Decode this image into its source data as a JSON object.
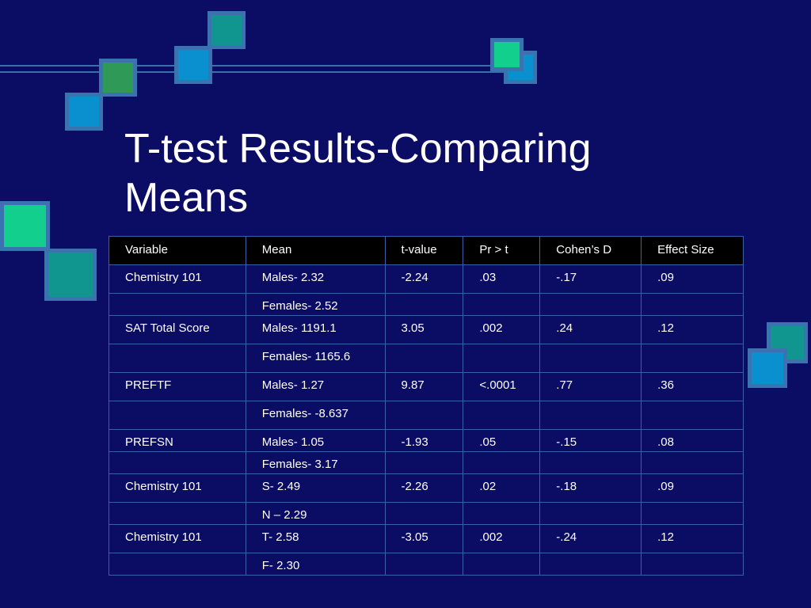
{
  "slide": {
    "title_line1": "T-test Results-Comparing",
    "title_line2": "Means"
  },
  "table": {
    "headers": [
      "Variable",
      "Mean",
      "t-value",
      "Pr > t",
      "Cohen’s D",
      "Effect Size"
    ],
    "rows": [
      [
        "Chemistry 101",
        "Males- 2.32",
        "-2.24",
        ".03",
        "-.17",
        ".09"
      ],
      [
        "",
        "Females- 2.52",
        "",
        "",
        "",
        ""
      ],
      [
        "SAT Total Score",
        "Males- 1191.1",
        "3.05",
        ".002",
        ".24",
        ".12"
      ],
      [
        "",
        "Females- 1165.6",
        "",
        "",
        "",
        ""
      ],
      [
        "PREFTF",
        "Males- 1.27",
        "9.87",
        "<.0001",
        ".77",
        ".36"
      ],
      [
        "",
        "Females- -8.637",
        "",
        "",
        "",
        ""
      ],
      [
        "PREFSN",
        "Males- 1.05",
        "-1.93",
        ".05",
        "-.15",
        ".08"
      ],
      [
        "",
        "Females- 3.17",
        "",
        "",
        "",
        ""
      ],
      [
        "Chemistry 101",
        "S- 2.49",
        "-2.26",
        ".02",
        "-.18",
        ".09"
      ],
      [
        "",
        "N – 2.29",
        "",
        "",
        "",
        ""
      ],
      [
        "Chemistry 101",
        "T- 2.58",
        "-3.05",
        ".002",
        "-.24",
        ".12"
      ],
      [
        "",
        "F- 2.30",
        "",
        "",
        "",
        ""
      ]
    ]
  },
  "colors": {
    "background": "#0b0c63",
    "header_bg": "#000000",
    "text": "#ffffff",
    "grid": "#3b5fa7"
  }
}
